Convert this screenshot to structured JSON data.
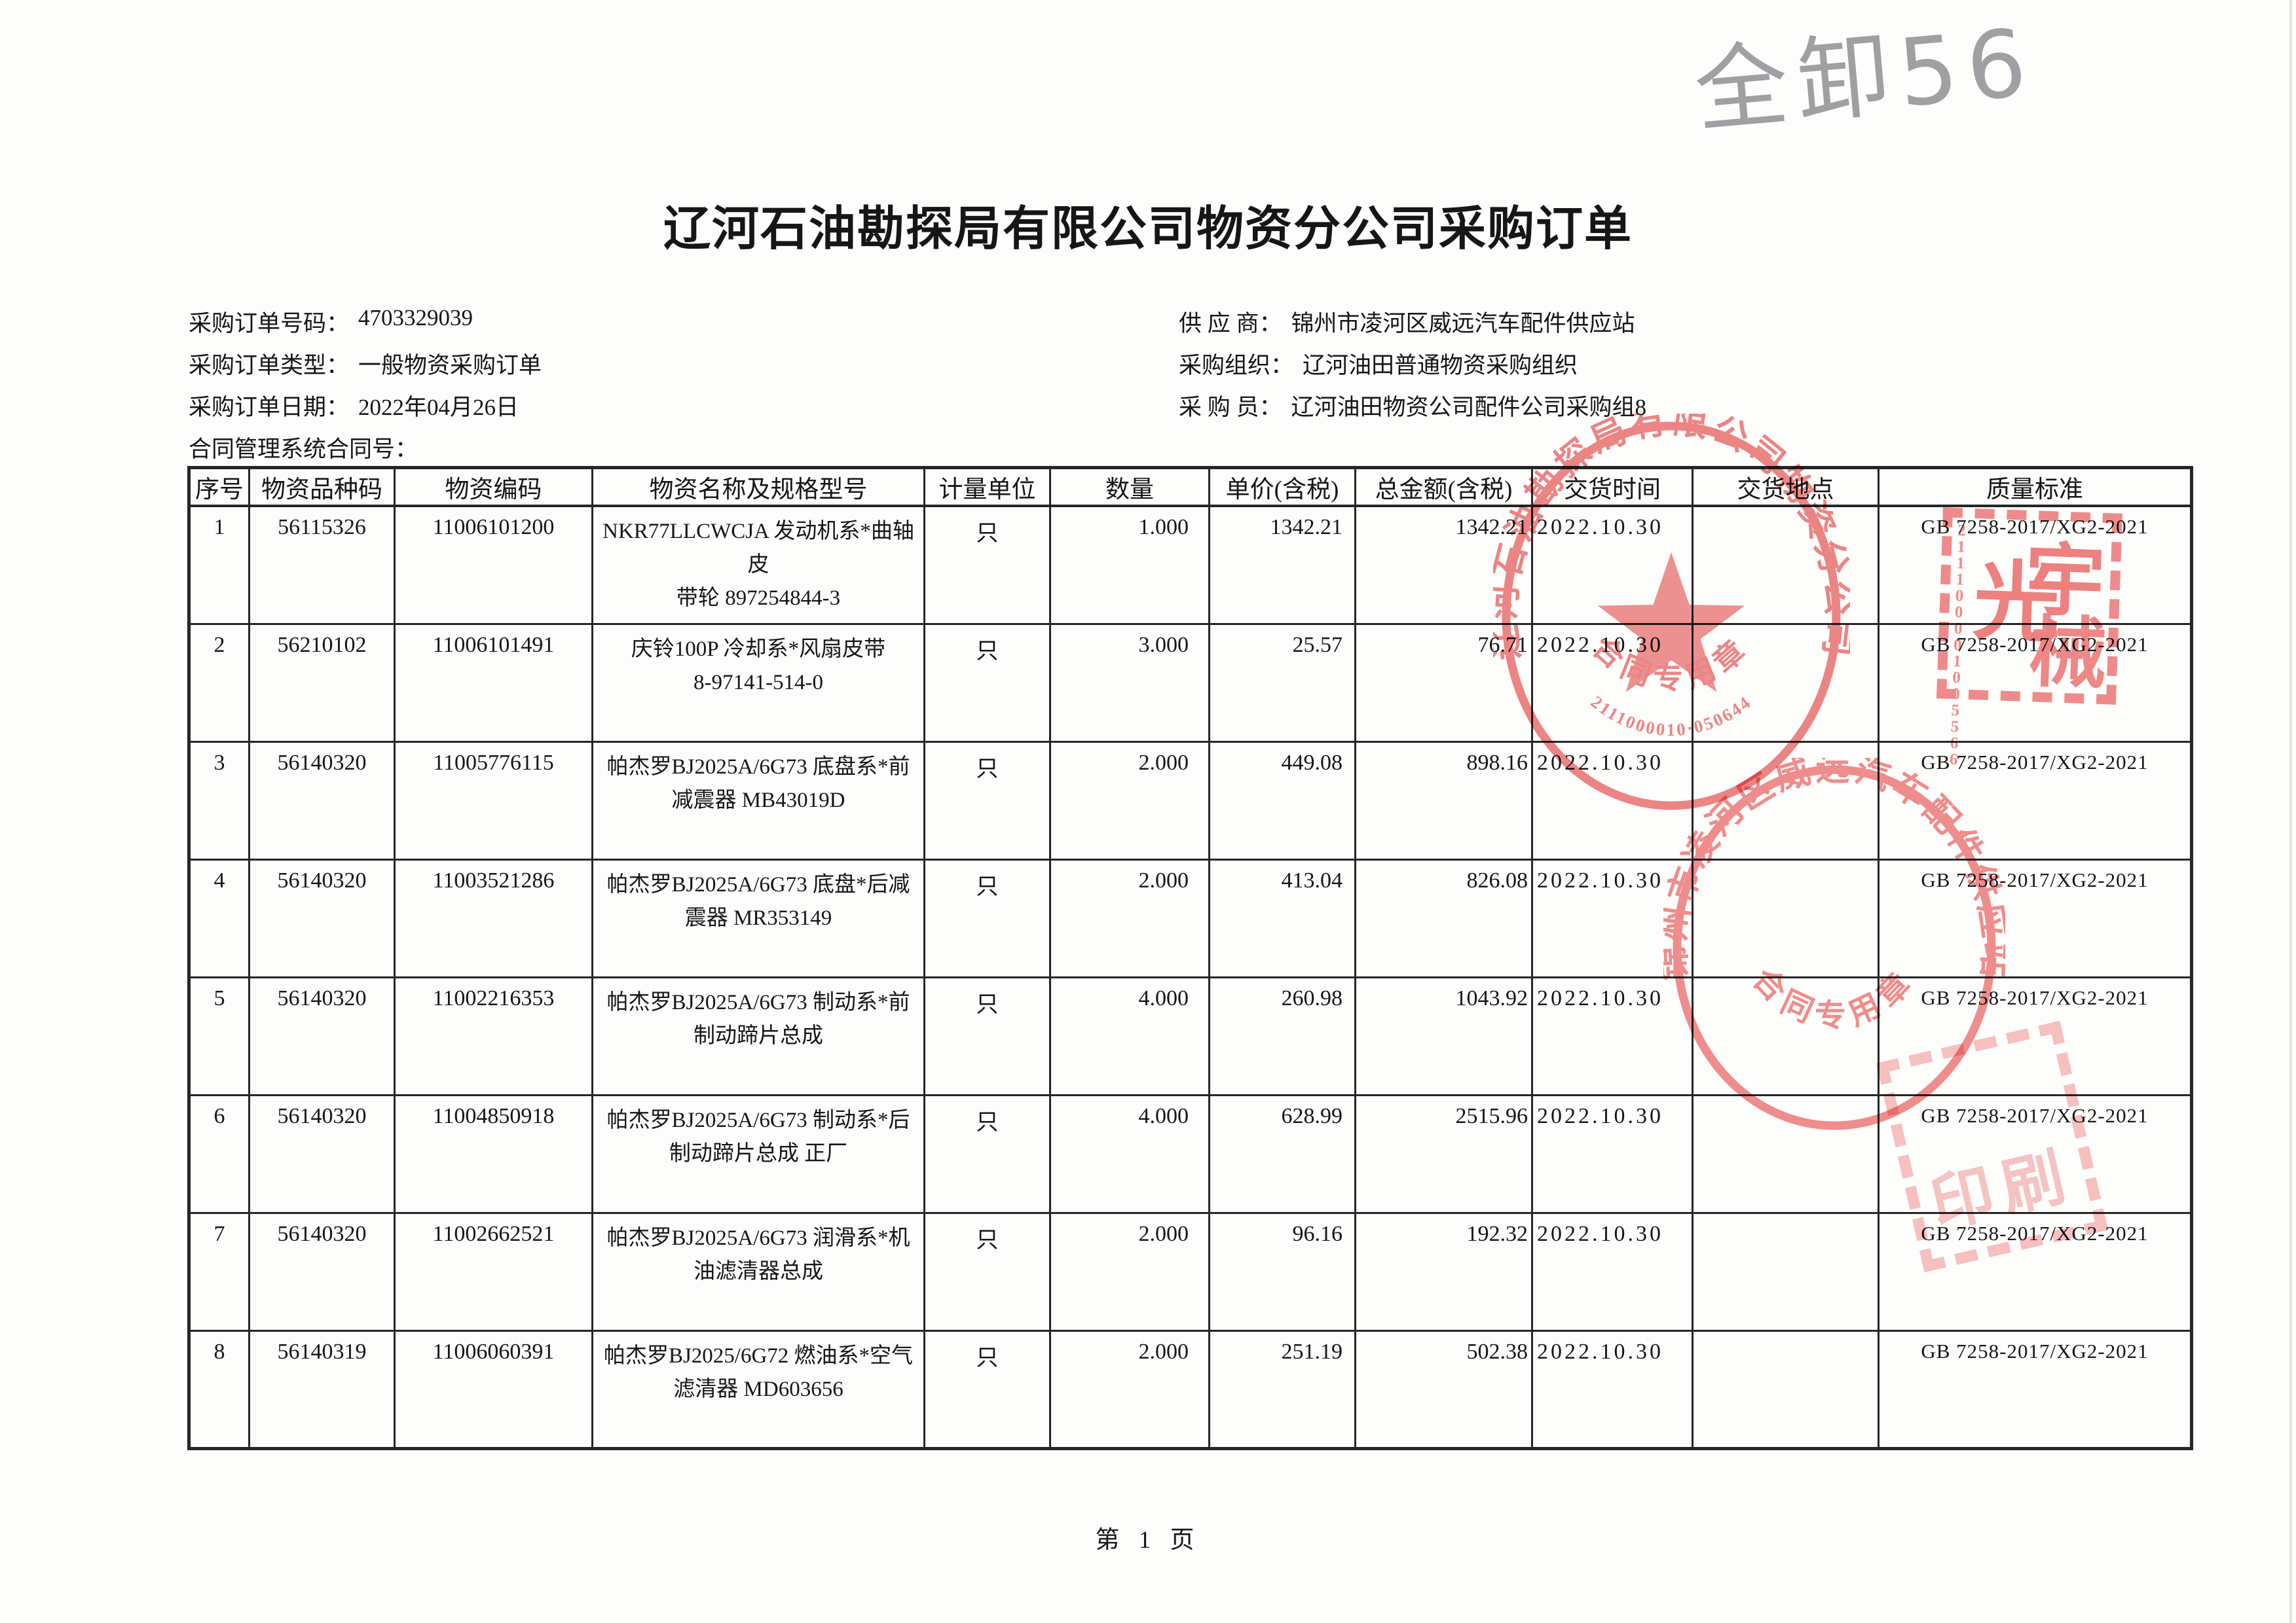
{
  "document": {
    "handwritten_note": "全卸56",
    "title": "辽河石油勘探局有限公司物资分公司采购订单",
    "footer_page": "第 1 页"
  },
  "meta_left": [
    {
      "label": "采购订单号码：",
      "value": "4703329039"
    },
    {
      "label": "采购订单类型：",
      "value": "一般物资采购订单"
    },
    {
      "label": "采购订单日期：",
      "value": "2022年04月26日"
    },
    {
      "label": "合同管理系统合同号：",
      "value": ""
    }
  ],
  "meta_right": [
    {
      "label": "供 应 商：",
      "value": "锦州市凌河区威远汽车配件供应站"
    },
    {
      "label": "采购组织：",
      "value": "辽河油田普通物资采购组织"
    },
    {
      "label": "采 购 员：",
      "value": "辽河油田物资公司配件公司采购组8"
    }
  ],
  "table": {
    "headers": [
      "序号",
      "物资品种码",
      "物资编码",
      "物资名称及规格型号",
      "计量单位",
      "数量",
      "单价(含税)",
      "总金额(含税)",
      "交货时间",
      "交货地点",
      "质量标准"
    ],
    "rows": [
      {
        "seq": "1",
        "category_code": "56115326",
        "material_code": "11006101200",
        "name_lines": [
          "NKR77LLCWCJA 发动机系*曲轴皮",
          "带轮 897254844-3"
        ],
        "unit": "只",
        "qty": "1.000",
        "unit_price": "1342.21",
        "total_amount": "1342.21",
        "delivery_date": "2022.10.30",
        "delivery_place": "",
        "quality_standard": "GB 7258-2017/XG2-2021"
      },
      {
        "seq": "2",
        "category_code": "56210102",
        "material_code": "11006101491",
        "name_lines": [
          "庆铃100P 冷却系*风扇皮带",
          "8-97141-514-0"
        ],
        "unit": "只",
        "qty": "3.000",
        "unit_price": "25.57",
        "total_amount": "76.71",
        "delivery_date": "2022.10.30",
        "delivery_place": "",
        "quality_standard": "GB 7258-2017/XG2-2021"
      },
      {
        "seq": "3",
        "category_code": "56140320",
        "material_code": "11005776115",
        "name_lines": [
          "帕杰罗BJ2025A/6G73 底盘系*前",
          "减震器 MB43019D"
        ],
        "unit": "只",
        "qty": "2.000",
        "unit_price": "449.08",
        "total_amount": "898.16",
        "delivery_date": "2022.10.30",
        "delivery_place": "",
        "quality_standard": "GB 7258-2017/XG2-2021"
      },
      {
        "seq": "4",
        "category_code": "56140320",
        "material_code": "11003521286",
        "name_lines": [
          "帕杰罗BJ2025A/6G73 底盘*后减",
          "震器 MR353149"
        ],
        "unit": "只",
        "qty": "2.000",
        "unit_price": "413.04",
        "total_amount": "826.08",
        "delivery_date": "2022.10.30",
        "delivery_place": "",
        "quality_standard": "GB 7258-2017/XG2-2021"
      },
      {
        "seq": "5",
        "category_code": "56140320",
        "material_code": "11002216353",
        "name_lines": [
          "帕杰罗BJ2025A/6G73 制动系*前",
          "制动蹄片总成"
        ],
        "unit": "只",
        "qty": "4.000",
        "unit_price": "260.98",
        "total_amount": "1043.92",
        "delivery_date": "2022.10.30",
        "delivery_place": "",
        "quality_standard": "GB 7258-2017/XG2-2021"
      },
      {
        "seq": "6",
        "category_code": "56140320",
        "material_code": "11004850918",
        "name_lines": [
          "帕杰罗BJ2025A/6G73 制动系*后",
          "制动蹄片总成 正厂"
        ],
        "unit": "只",
        "qty": "4.000",
        "unit_price": "628.99",
        "total_amount": "2515.96",
        "delivery_date": "2022.10.30",
        "delivery_place": "",
        "quality_standard": "GB 7258-2017/XG2-2021"
      },
      {
        "seq": "7",
        "category_code": "56140320",
        "material_code": "11002662521",
        "name_lines": [
          "帕杰罗BJ2025A/6G73 润滑系*机",
          "油滤清器总成"
        ],
        "unit": "只",
        "qty": "2.000",
        "unit_price": "96.16",
        "total_amount": "192.32",
        "delivery_date": "2022.10.30",
        "delivery_place": "",
        "quality_standard": "GB 7258-2017/XG2-2021"
      },
      {
        "seq": "8",
        "category_code": "56140319",
        "material_code": "11006060391",
        "name_lines": [
          "帕杰罗BJ2025/6G72 燃油系*空气",
          "滤清器 MD603656"
        ],
        "unit": "只",
        "qty": "2.000",
        "unit_price": "251.19",
        "total_amount": "502.38",
        "delivery_date": "2022.10.30",
        "delivery_place": "",
        "quality_standard": "GB 7258-2017/XG2-2021"
      }
    ]
  },
  "stamps": {
    "company_round": {
      "ring_text": "辽河石油勘探局有限公司物资分公司",
      "center_text": "合同专用章",
      "serial": "2111000010·050644",
      "color": "#ec7c7c"
    },
    "supplier_oval": {
      "ring_text": "锦州市凌河区威远汽车配件供应站",
      "center_text": "合同专用章",
      "color": "#ef8484"
    },
    "yuguang_square": {
      "char_top_right": "宇",
      "char_left": "光",
      "char_bottom_right": "械",
      "serial": "211100001005566",
      "color": "#ef7f7f"
    },
    "print_square": {
      "chars": "印刷",
      "color": "#f0a0a0"
    }
  }
}
